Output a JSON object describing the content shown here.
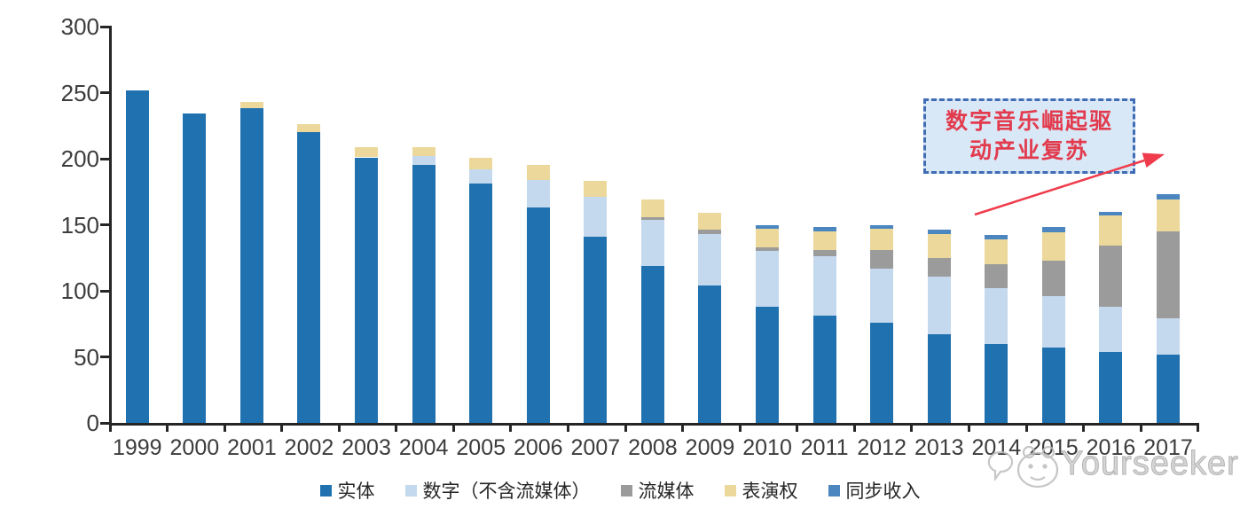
{
  "chart_data": {
    "type": "bar",
    "stacked": true,
    "title": "",
    "xlabel": "",
    "ylabel": "",
    "ylim": [
      0,
      300
    ],
    "yticks": [
      0,
      50,
      100,
      150,
      200,
      250,
      300
    ],
    "grid": false,
    "legend_position": "bottom",
    "categories": [
      "1999",
      "2000",
      "2001",
      "2002",
      "2003",
      "2004",
      "2005",
      "2006",
      "2007",
      "2008",
      "2009",
      "2010",
      "2011",
      "2012",
      "2013",
      "2014",
      "2015",
      "2016",
      "2017"
    ],
    "series": [
      {
        "name": "实体",
        "key": "physical",
        "color": "#2071AF",
        "values": [
          252,
          234,
          238,
          220,
          201,
          195,
          181,
          163,
          141,
          119,
          104,
          88,
          81,
          76,
          67,
          60,
          57,
          54,
          52
        ]
      },
      {
        "name": "数字（不含流媒体）",
        "key": "digital-excl-streaming",
        "color": "#C5D9EE",
        "values": [
          0,
          0,
          0,
          0,
          0,
          7,
          11,
          21,
          30,
          35,
          39,
          42,
          45,
          41,
          44,
          42,
          39,
          34,
          27
        ]
      },
      {
        "name": "流媒体",
        "key": "streaming",
        "color": "#9B9B9B",
        "values": [
          0,
          0,
          0,
          0,
          0,
          0,
          0,
          0,
          0,
          2,
          3,
          3,
          5,
          14,
          14,
          18,
          27,
          46,
          66
        ]
      },
      {
        "name": "表演权",
        "key": "performance-rights",
        "color": "#ECD89B",
        "values": [
          0,
          0,
          5,
          6,
          8,
          7,
          9,
          11,
          12,
          13,
          13,
          14,
          14,
          16,
          18,
          19,
          21,
          23,
          24
        ]
      },
      {
        "name": "同步收入",
        "key": "sync-revenue",
        "color": "#4C86C0",
        "values": [
          0,
          0,
          0,
          0,
          0,
          0,
          0,
          0,
          0,
          0,
          0,
          3,
          3,
          3,
          3,
          3,
          4,
          3,
          4
        ]
      }
    ]
  },
  "annotation": {
    "line1": "数字音乐崛起驱",
    "line2": "动产业复苏",
    "box_fill": "#D9E8F6",
    "box_border": "#3F6CB5",
    "text_color": "#E23B4E",
    "arrow_color": "#EF3B4B"
  },
  "watermark": {
    "text": "Yourseeker",
    "logo": "mascot-face-icon",
    "color": "#C9C9C9"
  },
  "axis": {
    "line_color": "#262626",
    "label_color": "#3C3C3C"
  }
}
